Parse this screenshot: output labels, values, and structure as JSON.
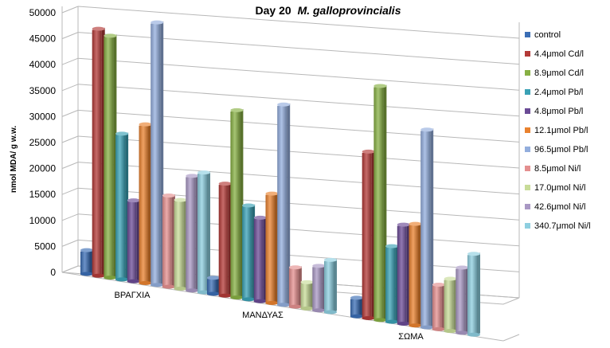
{
  "chart_data": {
    "type": "bar",
    "title": "Day 20",
    "title_italic": "M. galloprovincialis",
    "ylabel": "nmol MDA/ g w.w.",
    "ylim": [
      0,
      50000
    ],
    "yticks": [
      0,
      5000,
      10000,
      15000,
      20000,
      25000,
      30000,
      35000,
      40000,
      45000,
      50000
    ],
    "grid": true,
    "legend_position": "right",
    "categories": [
      "ΒΡΑΓΧΙΑ",
      "ΜΑΝΔΥΑΣ",
      "ΣΩΜΑ"
    ],
    "series": [
      {
        "name": "control",
        "color": "#3b6eb5",
        "values": [
          4500,
          3000,
          3500
        ]
      },
      {
        "name": "4.4μmol Cd/l",
        "color": "#b33a37",
        "values": [
          47500,
          21500,
          32000
        ]
      },
      {
        "name": "8.9μmol Cd/l",
        "color": "#87b044",
        "values": [
          46500,
          36000,
          45000
        ]
      },
      {
        "name": "2.4μmol Pb/l",
        "color": "#3aa1b5",
        "values": [
          28000,
          18000,
          14500
        ]
      },
      {
        "name": "4.8μmol Pb/l",
        "color": "#6b4b96",
        "values": [
          15500,
          16000,
          19000
        ]
      },
      {
        "name": "12.1μmol Pb/l",
        "color": "#e9822f",
        "values": [
          30500,
          21000,
          19500
        ]
      },
      {
        "name": "96.5μmol Pb/l",
        "color": "#93aedd",
        "values": [
          50500,
          38500,
          38000
        ]
      },
      {
        "name": "8.5μmol Ni/l",
        "color": "#e48f8f",
        "values": [
          17500,
          7500,
          8500
        ]
      },
      {
        "name": "17.0μmol Ni/l",
        "color": "#c8dc98",
        "values": [
          17000,
          5000,
          10000
        ]
      },
      {
        "name": "42.6μmol Ni/l",
        "color": "#a998c4",
        "values": [
          22000,
          8500,
          12500
        ]
      },
      {
        "name": "340.7μmol Ni/l",
        "color": "#8ecfe0",
        "values": [
          23000,
          10000,
          15500
        ]
      }
    ]
  }
}
